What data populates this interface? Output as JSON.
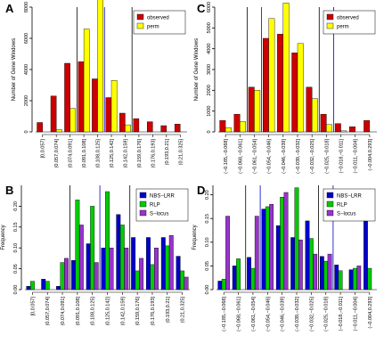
{
  "chart_data": [
    {
      "panel_label": "A",
      "type": "bar",
      "ylabel": "Number of Gene Windows",
      "ylim": [
        0,
        8000
      ],
      "yticks": [
        0,
        2000,
        4000,
        6000,
        8000
      ],
      "categories": [
        "[0,0.057]",
        "(0.057,0.074]",
        "(0.074,0.091]",
        "(0.091,0.108]",
        "(0.108,0.125]",
        "(0.125,0.142]",
        "(0.142,0.159]",
        "(0.159,0.176]",
        "(0.176,0.193]",
        "(0.193,0.21]",
        "(0.21,0.325]"
      ],
      "series": [
        {
          "name": "observed",
          "color": "#cc0000",
          "values": [
            600,
            2300,
            4400,
            4500,
            3400,
            2200,
            1200,
            850,
            650,
            400,
            500
          ]
        },
        {
          "name": "perm",
          "color": "#ffff00",
          "values": [
            0,
            150,
            1500,
            6600,
            8600,
            3300,
            450,
            0,
            0,
            0,
            0
          ]
        }
      ],
      "vlines": [
        {
          "after_index": 2.5,
          "color": "#000000"
        },
        {
          "after_index": 4.5,
          "color": "#0000cc"
        },
        {
          "after_index": 6.5,
          "color": "#000000"
        }
      ],
      "legend_position": "top-right",
      "grid": false
    },
    {
      "panel_label": "B",
      "type": "bar",
      "ylabel": "Frequency",
      "ylim": [
        0,
        0.25
      ],
      "yticks": [
        "0.00",
        "0.05",
        "0.10",
        "0.15",
        "0.20"
      ],
      "ytick_values": [
        0,
        0.05,
        0.1,
        0.15,
        0.2
      ],
      "categories": [
        "[0,0.057]",
        "(0.057,0.074]",
        "(0.074,0.091]",
        "(0.091,0.108]",
        "(0.108,0.125]",
        "(0.125,0.142]",
        "(0.142,0.159]",
        "(0.159,0.176]",
        "(0.176,0.193]",
        "(0.193,0.21]",
        "(0.21,0.325]"
      ],
      "series": [
        {
          "name": "NBS−LRR",
          "color": "#0000cc",
          "values": [
            0.008,
            0.025,
            0.008,
            0.07,
            0.11,
            0.1,
            0.18,
            0.125,
            0.125,
            0.125,
            0.08
          ]
        },
        {
          "name": "RLP",
          "color": "#00cc00",
          "values": [
            0.02,
            0.02,
            0.065,
            0.215,
            0.2,
            0.235,
            0.155,
            0.045,
            0.06,
            0.105,
            0.045
          ]
        },
        {
          "name": "S−locus",
          "color": "#9933cc",
          "values": [
            0.0,
            0.0,
            0.075,
            0.155,
            0.065,
            0.1,
            0.1,
            0.075,
            0.1,
            0.13,
            0.03
          ]
        }
      ],
      "vlines": [
        {
          "after_index": 2.5,
          "color": "#000000"
        },
        {
          "after_index": 4.5,
          "color": "#0000cc"
        },
        {
          "after_index": 6.5,
          "color": "#000000"
        }
      ],
      "legend_position": "top-right",
      "grid": false
    },
    {
      "panel_label": "C",
      "type": "bar",
      "ylabel": "Number of Gene Windows",
      "ylim": [
        0,
        6000
      ],
      "yticks": [
        0,
        1000,
        2000,
        3000,
        4000,
        5000,
        6000
      ],
      "categories": [
        "(−0.185,−0.068]",
        "(−0.068,−0.061]",
        "(−0.061,−0.054]",
        "(−0.054,−0.046]",
        "(−0.046,−0.039]",
        "(−0.039,−0.032]",
        "(−0.032,−0.025]",
        "(−0.025,−0.018]",
        "(−0.018,−0.011]",
        "(−0.011,−0.004]",
        "(−0.004,0.293]"
      ],
      "series": [
        {
          "name": "observed",
          "color": "#cc0000",
          "values": [
            550,
            850,
            2150,
            4500,
            4700,
            3800,
            2150,
            850,
            400,
            250,
            550
          ]
        },
        {
          "name": "perm",
          "color": "#ffff00",
          "values": [
            200,
            500,
            2000,
            5450,
            6200,
            4250,
            1600,
            350,
            50,
            0,
            0
          ]
        }
      ],
      "vlines": [
        {
          "after_index": 1.5,
          "color": "#000000"
        },
        {
          "after_index": 2.5,
          "color": "#0000cc"
        },
        {
          "after_index": 6.5,
          "color": "#000000"
        },
        {
          "after_index": 7.5,
          "color": "#0000cc"
        }
      ],
      "legend_position": "top-right",
      "grid": false
    },
    {
      "panel_label": "D",
      "type": "bar",
      "ylabel": "Frequency",
      "ylim": [
        0,
        0.22
      ],
      "yticks": [
        "0.00",
        "0.05",
        "0.10",
        "0.15",
        "0.20"
      ],
      "ytick_values": [
        0,
        0.05,
        0.1,
        0.15,
        0.2
      ],
      "categories": [
        "(−0.185,−0.068]",
        "(−0.068,−0.061]",
        "(−0.061,−0.054]",
        "(−0.054,−0.046]",
        "(−0.046,−0.039]",
        "(−0.039,−0.032]",
        "(−0.032,−0.025]",
        "(−0.025,−0.018]",
        "(−0.018,−0.011]",
        "(−0.011,−0.004]",
        "(−0.004,0.293]"
      ],
      "series": [
        {
          "name": "NBS−LRR",
          "color": "#0000cc",
          "values": [
            0.018,
            0.05,
            0.068,
            0.17,
            0.135,
            0.11,
            0.145,
            0.07,
            0.052,
            0.042,
            0.145
          ]
        },
        {
          "name": "RLP",
          "color": "#00cc00",
          "values": [
            0.022,
            0.065,
            0.045,
            0.175,
            0.195,
            0.215,
            0.108,
            0.06,
            0.04,
            0.045,
            0.045
          ]
        },
        {
          "name": "S−locus",
          "color": "#9933cc",
          "values": [
            0.155,
            0.0,
            0.155,
            0.18,
            0.205,
            0.105,
            0.075,
            0.075,
            0.0,
            0.05,
            0.0
          ]
        }
      ],
      "vlines": [
        {
          "after_index": 1.5,
          "color": "#000000"
        },
        {
          "after_index": 2.5,
          "color": "#0000cc"
        },
        {
          "after_index": 6.5,
          "color": "#000000"
        },
        {
          "after_index": 7.5,
          "color": "#0000cc"
        }
      ],
      "legend_position": "top-right",
      "grid": false
    }
  ]
}
